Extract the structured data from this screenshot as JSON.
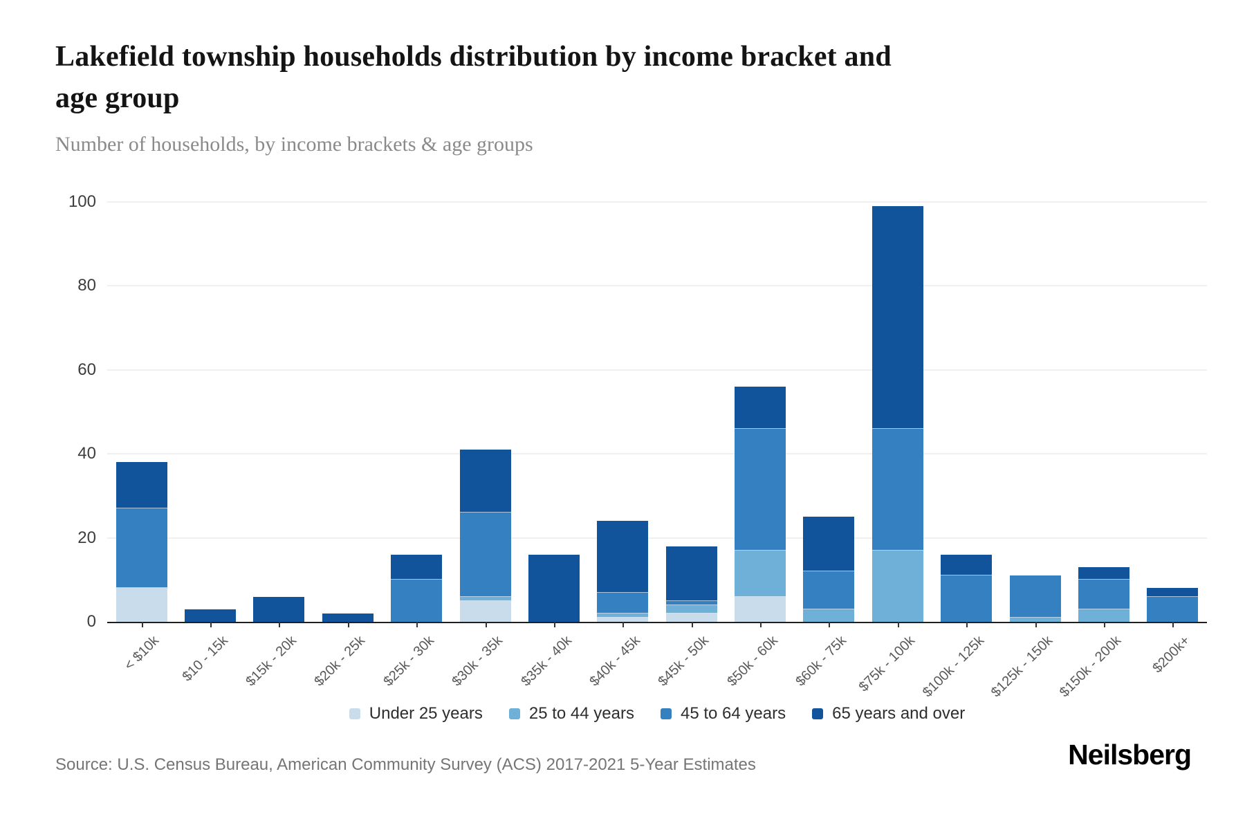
{
  "header": {
    "title_line1": "Lakefield township households distribution by income bracket and",
    "title_line2": "age group",
    "subtitle": "Number of households, by income brackets & age groups"
  },
  "chart_data": {
    "type": "bar",
    "stacked": true,
    "title": "Lakefield township households distribution by income bracket and age group",
    "xlabel": "",
    "ylabel": "Number of households",
    "ylim": [
      0,
      100
    ],
    "yticks": [
      0,
      20,
      40,
      60,
      80,
      100
    ],
    "grid": true,
    "legend_position": "bottom",
    "categories": [
      "< $10k",
      "$10 - 15k",
      "$15k - 20k",
      "$20k - 25k",
      "$25k - 30k",
      "$30k - 35k",
      "$35k - 40k",
      "$40k - 45k",
      "$45k - 50k",
      "$50k - 60k",
      "$60k - 75k",
      "$75k - 100k",
      "$100k - 125k",
      "$125k - 150k",
      "$150k - 200k",
      "$200k+"
    ],
    "series": [
      {
        "name": "Under 25 years",
        "color": "#c8dcec",
        "values": [
          8,
          0,
          0,
          0,
          0,
          5,
          0,
          1,
          2,
          6,
          0,
          0,
          0,
          0,
          0,
          0
        ]
      },
      {
        "name": "25 to 44 years",
        "color": "#6fb0d8",
        "values": [
          0,
          0,
          0,
          0,
          0,
          1,
          0,
          1,
          2,
          11,
          3,
          17,
          0,
          1,
          3,
          0
        ]
      },
      {
        "name": "45 to 64 years",
        "color": "#3580c1",
        "values": [
          19,
          0,
          0,
          0,
          10,
          20,
          0,
          5,
          1,
          29,
          9,
          29,
          11,
          10,
          7,
          6
        ]
      },
      {
        "name": "65 years and over",
        "color": "#11549b",
        "values": [
          11,
          3,
          6,
          2,
          6,
          15,
          16,
          17,
          13,
          10,
          13,
          53,
          5,
          0,
          3,
          2
        ]
      }
    ],
    "totals": [
      38,
      3,
      6,
      2,
      16,
      41,
      16,
      24,
      18,
      56,
      25,
      99,
      16,
      11,
      13,
      8
    ]
  },
  "footer": {
    "source": "Source: U.S. Census Bureau, American Community Survey (ACS) 2017-2021 5-Year Estimates",
    "brand": "Neilsberg"
  }
}
